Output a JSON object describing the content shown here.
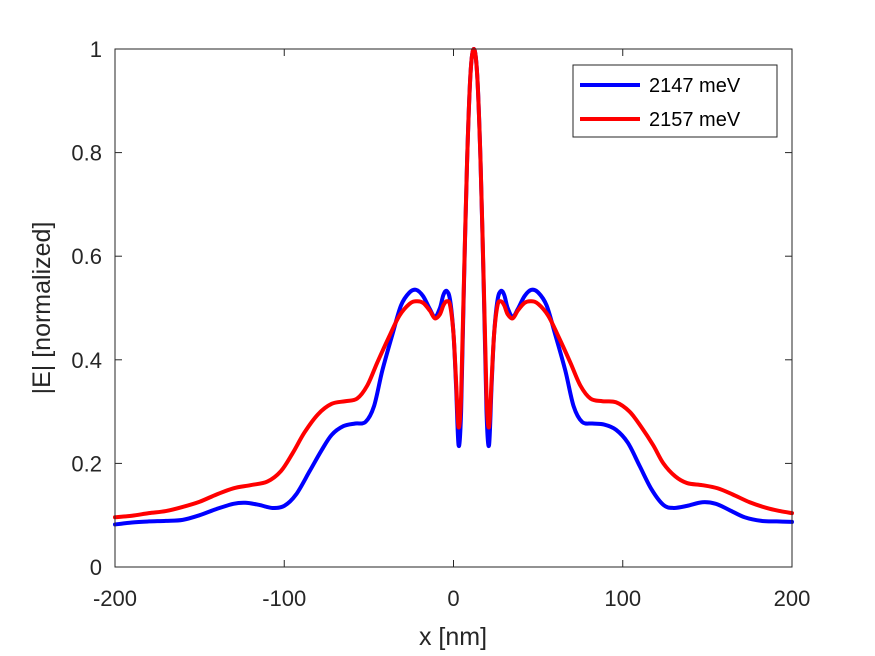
{
  "chart_data": {
    "type": "line",
    "title": "",
    "xlabel": "x [nm]",
    "ylabel": "|E| [normalized]",
    "xlim": [
      -200,
      200
    ],
    "ylim": [
      0,
      1
    ],
    "xticks": [
      -200,
      -100,
      0,
      100,
      200
    ],
    "xtick_labels": [
      "-200",
      "-100",
      "0",
      "100",
      "200"
    ],
    "yticks": [
      0,
      0.2,
      0.4,
      0.6,
      0.8,
      1
    ],
    "ytick_labels": [
      "0",
      "0.2",
      "0.4",
      "0.6",
      "0.8",
      "1"
    ],
    "grid": false,
    "legend_position": "top-right",
    "series": [
      {
        "name": "2147 meV",
        "color": "#0000ff",
        "points": [
          [
            -200,
            0.082
          ],
          [
            -190,
            0.086
          ],
          [
            -180,
            0.088
          ],
          [
            -170,
            0.089
          ],
          [
            -160,
            0.091
          ],
          [
            -150,
            0.1
          ],
          [
            -140,
            0.112
          ],
          [
            -130,
            0.122
          ],
          [
            -123,
            0.124
          ],
          [
            -115,
            0.12
          ],
          [
            -107,
            0.114
          ],
          [
            -100,
            0.118
          ],
          [
            -93,
            0.14
          ],
          [
            -85,
            0.185
          ],
          [
            -78,
            0.225
          ],
          [
            -72,
            0.255
          ],
          [
            -65,
            0.272
          ],
          [
            -58,
            0.277
          ],
          [
            -52,
            0.28
          ],
          [
            -47,
            0.31
          ],
          [
            -42,
            0.38
          ],
          [
            -36,
            0.45
          ],
          [
            -31,
            0.505
          ],
          [
            -26,
            0.53
          ],
          [
            -22,
            0.535
          ],
          [
            -18,
            0.523
          ],
          [
            -14,
            0.498
          ],
          [
            -11,
            0.483
          ],
          [
            -8,
            0.5
          ],
          [
            -6,
            0.525
          ],
          [
            -4,
            0.533
          ],
          [
            -2,
            0.515
          ],
          [
            0,
            0.45
          ],
          [
            1.5,
            0.35
          ],
          [
            3,
            0.235
          ],
          [
            4.5,
            0.3
          ],
          [
            6,
            0.52
          ],
          [
            8,
            0.78
          ],
          [
            10,
            0.95
          ],
          [
            12,
            1.0
          ],
          [
            14,
            0.95
          ],
          [
            16,
            0.78
          ],
          [
            18,
            0.52
          ],
          [
            19.5,
            0.3
          ],
          [
            21,
            0.235
          ],
          [
            22.5,
            0.35
          ],
          [
            24,
            0.45
          ],
          [
            26,
            0.515
          ],
          [
            28,
            0.533
          ],
          [
            30,
            0.525
          ],
          [
            32,
            0.5
          ],
          [
            35,
            0.483
          ],
          [
            38,
            0.498
          ],
          [
            42,
            0.523
          ],
          [
            46,
            0.535
          ],
          [
            50,
            0.53
          ],
          [
            55,
            0.505
          ],
          [
            60,
            0.45
          ],
          [
            66,
            0.38
          ],
          [
            71,
            0.31
          ],
          [
            76,
            0.28
          ],
          [
            82,
            0.277
          ],
          [
            89,
            0.275
          ],
          [
            96,
            0.265
          ],
          [
            103,
            0.24
          ],
          [
            110,
            0.195
          ],
          [
            117,
            0.15
          ],
          [
            124,
            0.12
          ],
          [
            130,
            0.114
          ],
          [
            138,
            0.118
          ],
          [
            147,
            0.125
          ],
          [
            155,
            0.122
          ],
          [
            163,
            0.11
          ],
          [
            172,
            0.096
          ],
          [
            182,
            0.089
          ],
          [
            191,
            0.088
          ],
          [
            200,
            0.087
          ]
        ]
      },
      {
        "name": "2157 meV",
        "color": "#ff0000",
        "points": [
          [
            -200,
            0.096
          ],
          [
            -190,
            0.099
          ],
          [
            -180,
            0.104
          ],
          [
            -170,
            0.108
          ],
          [
            -160,
            0.116
          ],
          [
            -150,
            0.126
          ],
          [
            -140,
            0.14
          ],
          [
            -130,
            0.152
          ],
          [
            -120,
            0.158
          ],
          [
            -110,
            0.165
          ],
          [
            -102,
            0.185
          ],
          [
            -95,
            0.22
          ],
          [
            -88,
            0.26
          ],
          [
            -80,
            0.295
          ],
          [
            -72,
            0.315
          ],
          [
            -64,
            0.32
          ],
          [
            -57,
            0.325
          ],
          [
            -51,
            0.35
          ],
          [
            -45,
            0.395
          ],
          [
            -38,
            0.445
          ],
          [
            -32,
            0.485
          ],
          [
            -26,
            0.508
          ],
          [
            -22,
            0.513
          ],
          [
            -18,
            0.51
          ],
          [
            -14,
            0.495
          ],
          [
            -11,
            0.48
          ],
          [
            -8,
            0.488
          ],
          [
            -6,
            0.505
          ],
          [
            -4,
            0.513
          ],
          [
            -2,
            0.505
          ],
          [
            0,
            0.45
          ],
          [
            1.5,
            0.36
          ],
          [
            3,
            0.27
          ],
          [
            4.5,
            0.33
          ],
          [
            6,
            0.53
          ],
          [
            8,
            0.78
          ],
          [
            10,
            0.95
          ],
          [
            12,
            1.0
          ],
          [
            14,
            0.95
          ],
          [
            16,
            0.78
          ],
          [
            18,
            0.53
          ],
          [
            19.5,
            0.33
          ],
          [
            21,
            0.27
          ],
          [
            22.5,
            0.36
          ],
          [
            24,
            0.45
          ],
          [
            26,
            0.505
          ],
          [
            28,
            0.513
          ],
          [
            30,
            0.505
          ],
          [
            32,
            0.488
          ],
          [
            35,
            0.48
          ],
          [
            38,
            0.495
          ],
          [
            42,
            0.51
          ],
          [
            46,
            0.513
          ],
          [
            50,
            0.508
          ],
          [
            56,
            0.485
          ],
          [
            62,
            0.445
          ],
          [
            69,
            0.395
          ],
          [
            75,
            0.35
          ],
          [
            81,
            0.325
          ],
          [
            88,
            0.32
          ],
          [
            96,
            0.318
          ],
          [
            104,
            0.3
          ],
          [
            111,
            0.27
          ],
          [
            118,
            0.235
          ],
          [
            124,
            0.2
          ],
          [
            131,
            0.175
          ],
          [
            138,
            0.162
          ],
          [
            147,
            0.158
          ],
          [
            156,
            0.152
          ],
          [
            165,
            0.14
          ],
          [
            175,
            0.125
          ],
          [
            185,
            0.114
          ],
          [
            193,
            0.108
          ],
          [
            200,
            0.104
          ]
        ]
      }
    ]
  }
}
